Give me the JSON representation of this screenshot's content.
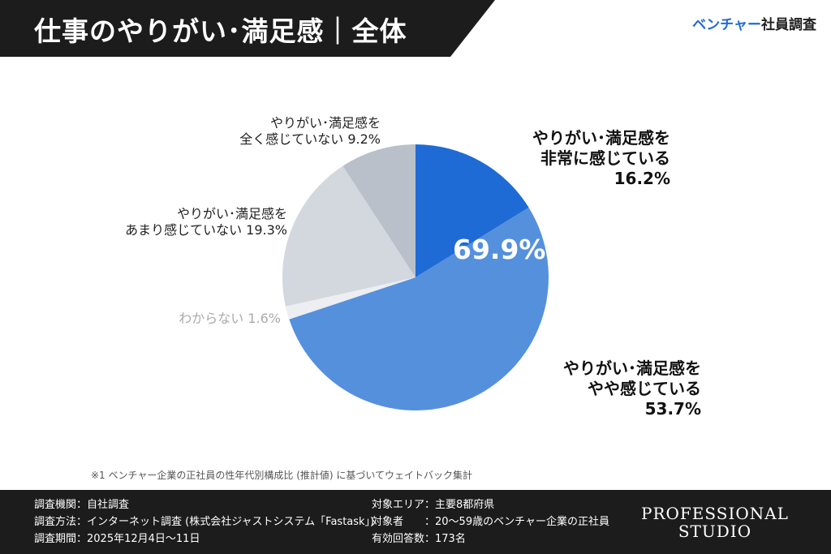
{
  "header": {
    "title": "仕事のやりがい･満足感｜全体",
    "brand_accent": "ベンチャー",
    "brand_rest": "社員調査"
  },
  "chart_data": {
    "type": "pie",
    "start": "top",
    "direction": "clockwise",
    "slices": [
      {
        "label": "やりがい･満足感を\n非常に感じている\n16.2%",
        "value": 16.2,
        "color": "#1f6bd6"
      },
      {
        "label": "やりがい･満足感を\nやや感じている\n53.7%",
        "value": 53.7,
        "color": "#5590dd"
      },
      {
        "label": "わからない 1.6%",
        "value": 1.6,
        "color": "#eceef1"
      },
      {
        "label": "やりがい･満足感を\nあまり感じていない 19.3%",
        "value": 19.3,
        "color": "#d3d8de"
      },
      {
        "label": "やりがい･満足感を\n全く感じていない 9.2%",
        "value": 9.2,
        "color": "#b9c0ca"
      }
    ],
    "annotation": "69.9%"
  },
  "note": "※1 ベンチャー企業の正社員の性年代別構成比 (推計値) に基づいてウェイトバック集計",
  "footer": {
    "col1": [
      "調査機関：自社調査",
      "調査方法：インターネット調査 (株式会社ジャストシステム「Fastask」)",
      "調査期間：2025年12月4日〜11日"
    ],
    "col2": [
      "対象エリア：主要8都府県",
      "対象者　　：20〜59歳のベンチャー企業の正社員",
      "有効回答数：173名"
    ],
    "logo_line1": "PROFESSIONAL",
    "logo_line2": "STUDIO"
  }
}
